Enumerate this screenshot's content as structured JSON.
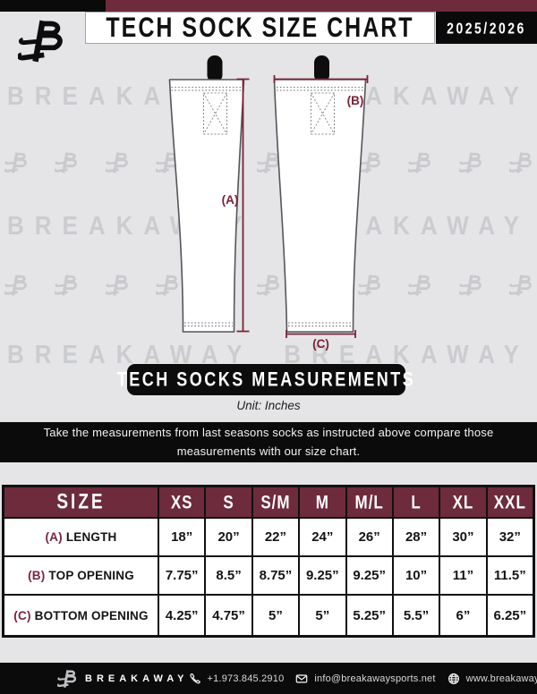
{
  "header": {
    "title": "TECH SOCK SIZE CHART",
    "season": "2025/2026"
  },
  "watermark": {
    "text": "BREAKAWAY BREAKAWAY",
    "text_rows": 3,
    "logo_rows": 2,
    "logos_per_row": 11
  },
  "diagram": {
    "label_a": "(A)",
    "label_b": "(B)",
    "label_c": "(C)",
    "banner": "TECH SOCKS MEASUREMENTS",
    "unit": "Unit: Inches"
  },
  "instruction": "Take the measurements from last seasons socks as instructed above compare those measurements  with our size chart.",
  "table": {
    "columns": [
      "SIZE",
      "XS",
      "S",
      "S/M",
      "M",
      "M/L",
      "L",
      "XL",
      "XXL"
    ],
    "rows": [
      {
        "prefix": "(A)",
        "label": "LENGTH",
        "values": [
          "18”",
          "20”",
          "22”",
          "24”",
          "26”",
          "28”",
          "30”",
          "32”"
        ]
      },
      {
        "prefix": "(B)",
        "label": "TOP OPENING",
        "values": [
          "7.75”",
          "8.5”",
          "8.75”",
          "9.25”",
          "9.25”",
          "10”",
          "11”",
          "11.5”"
        ]
      },
      {
        "prefix": "(C)",
        "label": "BOTTOM OPENING",
        "values": [
          "4.25”",
          "4.75”",
          "5”",
          "5”",
          "5.25”",
          "5.5”",
          "6”",
          "6.25”"
        ]
      }
    ]
  },
  "footer": {
    "brand": "BREAKAWAY",
    "phone": "+1.973.845.2910",
    "email": "info@breakawaysports.net",
    "website": "www.breakawaysports.net"
  },
  "colors": {
    "maroon": "#6e2b3c",
    "measure_maroon": "#7b2338",
    "black": "#0a0a0a",
    "background": "#e5e5e7",
    "watermark_gray": "#cbccd0"
  }
}
